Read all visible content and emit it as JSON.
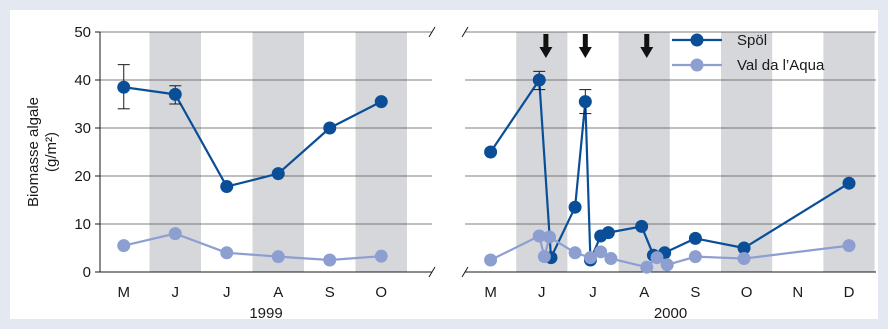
{
  "chart_data": {
    "type": "line",
    "ylabel_line1": "Biomasse algale",
    "ylabel_line2": "(g/m²)",
    "ylim": [
      0,
      50
    ],
    "yticks": [
      "0",
      "10",
      "20",
      "30",
      "40",
      "50"
    ],
    "grid": "horizontal",
    "legend_position": "top-right",
    "colors": {
      "spol": "#0a4e98",
      "val": "#8d9fd0",
      "shade": "#d6d7db"
    },
    "panels": [
      {
        "year": "1999",
        "month_labels": [
          "M",
          "J",
          "J",
          "A",
          "S",
          "O"
        ],
        "series": [
          {
            "name": "Spöl",
            "x": [
              1,
              2,
              3,
              4,
              5,
              6
            ],
            "y": [
              38.5,
              37,
              17.8,
              20.5,
              30,
              35.5
            ],
            "errorbars": [
              [
                38.5,
                34,
                43.2
              ],
              [
                37,
                35,
                38.8
              ]
            ]
          },
          {
            "name": "Val da l’Aqua",
            "x": [
              1,
              2,
              3,
              4,
              5,
              6
            ],
            "y": [
              5.5,
              8,
              4,
              3.2,
              2.5,
              3.3
            ]
          }
        ]
      },
      {
        "year": "2000",
        "month_labels": [
          "M",
          "J",
          "J",
          "A",
          "S",
          "O",
          "N",
          "D"
        ],
        "arrows_x": [
          2.08,
          2.85,
          4.05
        ],
        "series": [
          {
            "name": "Spöl",
            "x": [
              1,
              1.95,
              2.18,
              2.65,
              2.85,
              2.95,
              3.15,
              3.3,
              3.95,
              4.18,
              4.4,
              5,
              5.95,
              8
            ],
            "y": [
              25,
              40,
              3,
              13.5,
              35.5,
              2.5,
              7.5,
              8.2,
              9.5,
              3.5,
              4,
              7,
              5,
              18.5
            ],
            "errorbars": [
              [
                40,
                38,
                41.8
              ],
              [
                35.5,
                33,
                38
              ]
            ]
          },
          {
            "name": "Val da l’Aqua",
            "x": [
              1,
              1.95,
              2.05,
              2.15,
              2.65,
              2.95,
              3.15,
              3.35,
              4.05,
              4.25,
              4.45,
              5,
              5.95,
              8
            ],
            "y": [
              2.5,
              7.5,
              3.2,
              7.3,
              4,
              3,
              4.2,
              2.8,
              1,
              3,
              1.5,
              3.2,
              2.8,
              5.5
            ]
          }
        ]
      }
    ]
  }
}
